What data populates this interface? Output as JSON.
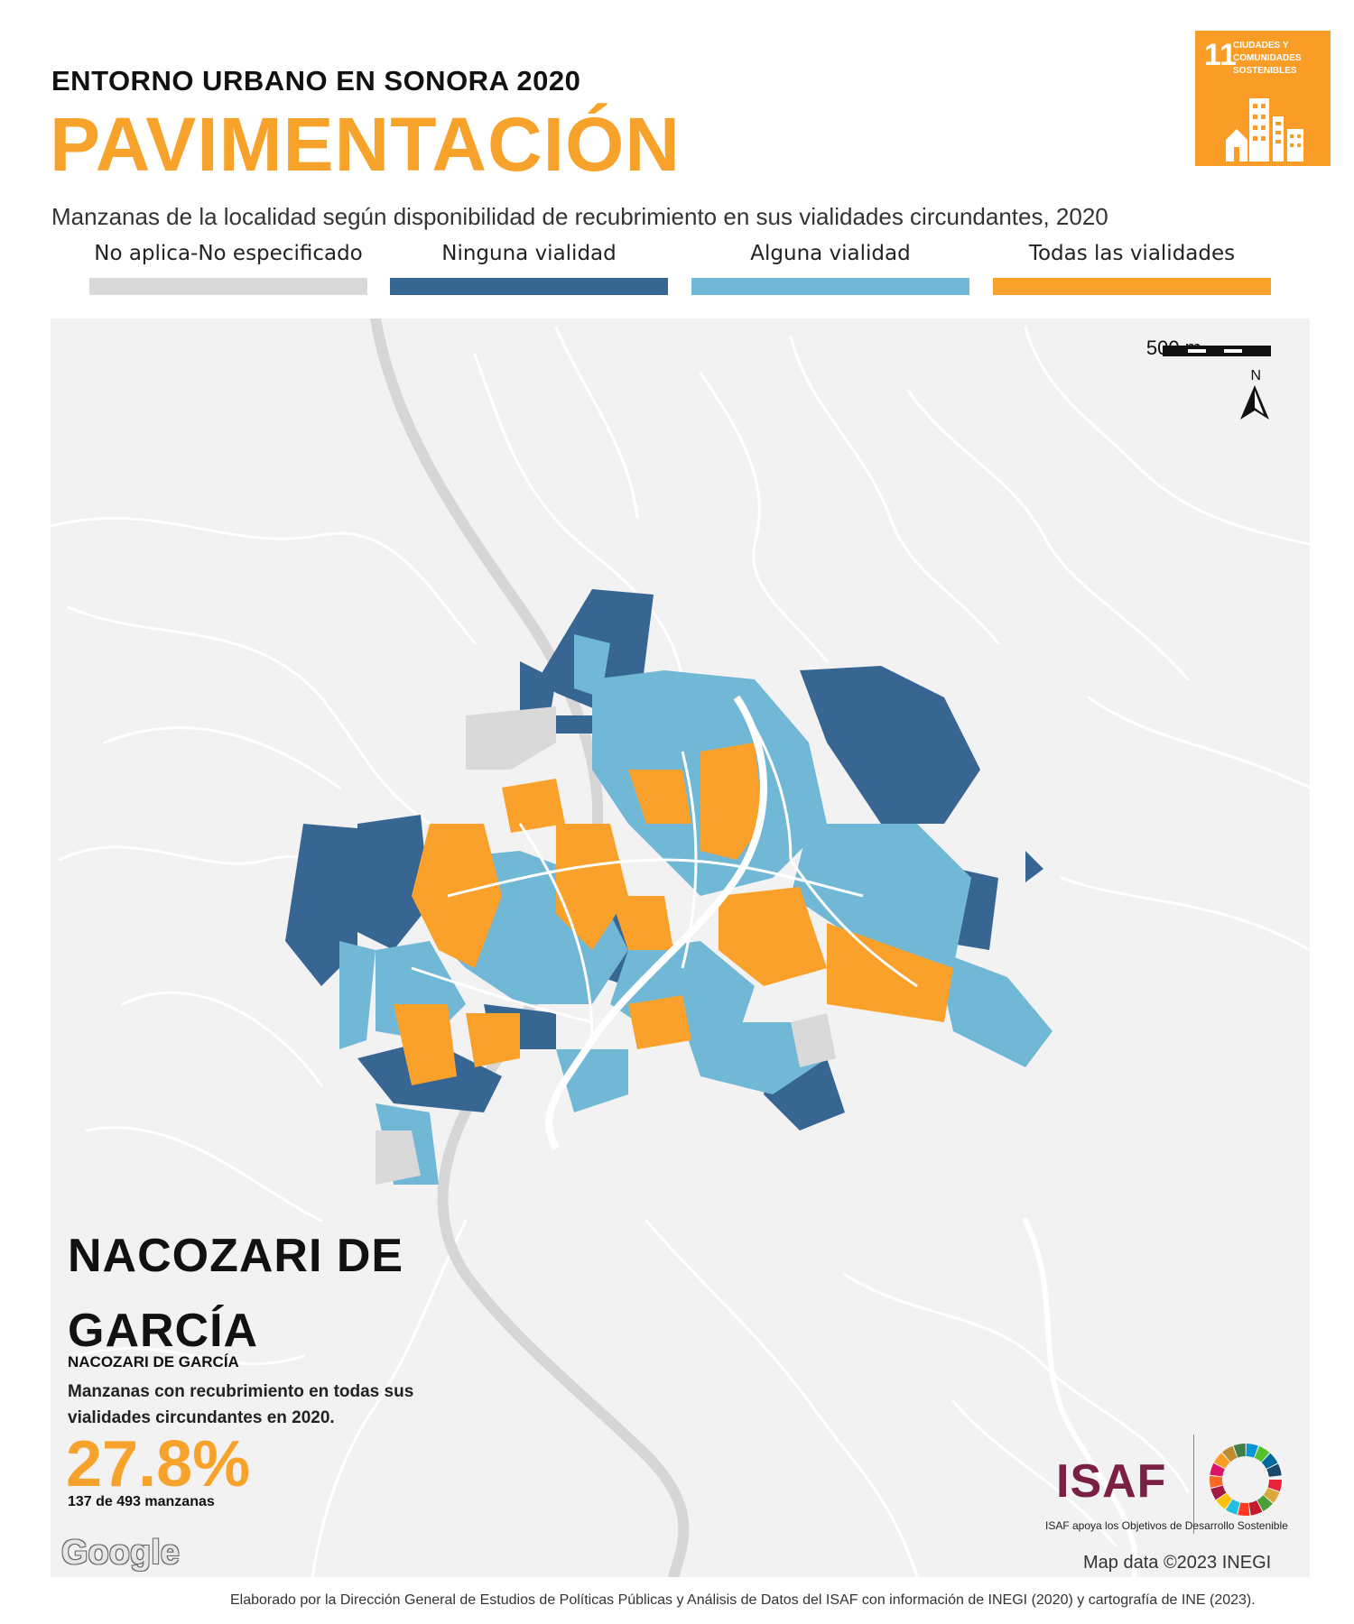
{
  "header": {
    "kicker": "ENTORNO URBANO EN SONORA 2020",
    "title": "PAVIMENTACIÓN",
    "subtitle": "Manzanas de la localidad según disponibilidad de recubrimiento en sus vialidades circundantes, 2020"
  },
  "sdg_badge": {
    "number": "11",
    "label": "CIUDADES Y COMUNIDADES SOSTENIBLES",
    "color": "#F99D26"
  },
  "legend": [
    {
      "label": "No aplica-No especificado",
      "color": "#D9D9D9"
    },
    {
      "label": "Ninguna vialidad",
      "color": "#386693"
    },
    {
      "label": "Alguna vialidad",
      "color": "#71B8D6"
    },
    {
      "label": "Todas las vialidades",
      "color": "#F9A12A"
    }
  ],
  "map": {
    "scale_label": "500 m",
    "north_label": "N",
    "google_label": "Google",
    "attribution": "Map data ©2023 INEGI"
  },
  "info": {
    "place_line1": "NACOZARI DE",
    "place_line2": "GARCÍA",
    "municipality": "NACOZARI DE GARCÍA",
    "description": "Manzanas con recubrimiento en todas sus vialidades circundantes en 2020.",
    "value": "27.8%",
    "count": "137 de 493 manzanas"
  },
  "logos": {
    "isaf": "ISAF",
    "tagline": "ISAF apoya los Objetivos de Desarrollo Sostenible"
  },
  "footer": "Elaborado por la Dirección General de Estudios de Políticas Públicas y Análisis de Datos del ISAF con información de INEGI (2020) y cartografía de INE (2023)."
}
